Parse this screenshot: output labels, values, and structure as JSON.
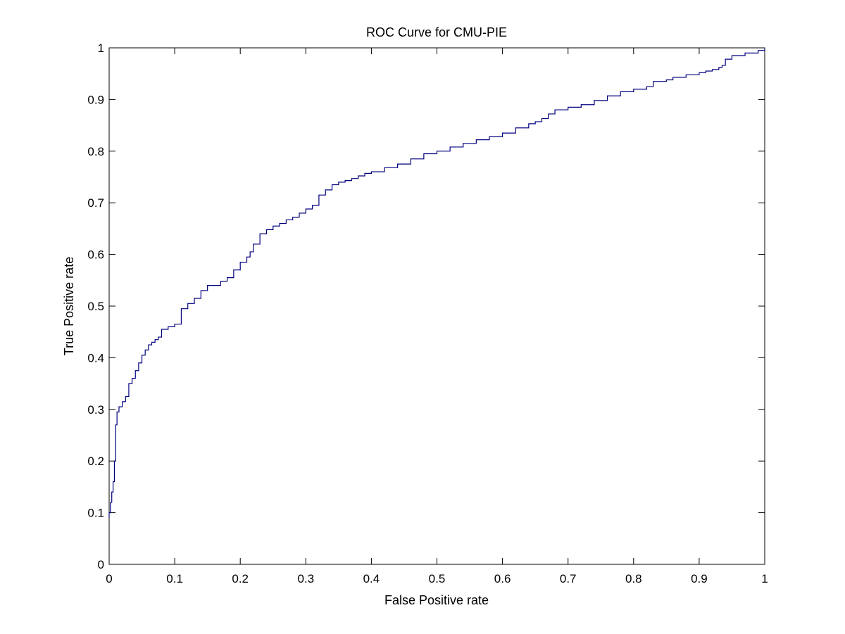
{
  "chart_data": {
    "type": "line",
    "title": "ROC Curve for CMU-PIE",
    "xlabel": "False Positive rate",
    "ylabel": "True Positive rate",
    "xlim": [
      0,
      1
    ],
    "ylim": [
      0,
      1
    ],
    "x_ticks": [
      "0",
      "0.1",
      "0.2",
      "0.3",
      "0.4",
      "0.5",
      "0.6",
      "0.7",
      "0.8",
      "0.9",
      "1"
    ],
    "y_ticks": [
      "0",
      "0.1",
      "0.2",
      "0.3",
      "0.4",
      "0.5",
      "0.6",
      "0.7",
      "0.8",
      "0.9",
      "1"
    ],
    "grid": false,
    "line_color": "#00007f",
    "series": [
      {
        "step": true,
        "x": [
          0,
          0.002,
          0.004,
          0.006,
          0.008,
          0.01,
          0.012,
          0.015,
          0.02,
          0.025,
          0.03,
          0.035,
          0.04,
          0.045,
          0.05,
          0.055,
          0.06,
          0.065,
          0.07,
          0.075,
          0.08,
          0.09,
          0.1,
          0.11,
          0.12,
          0.13,
          0.14,
          0.15,
          0.17,
          0.18,
          0.19,
          0.2,
          0.21,
          0.215,
          0.22,
          0.23,
          0.24,
          0.25,
          0.26,
          0.27,
          0.28,
          0.29,
          0.3,
          0.31,
          0.32,
          0.33,
          0.34,
          0.35,
          0.36,
          0.37,
          0.38,
          0.39,
          0.4,
          0.42,
          0.44,
          0.46,
          0.48,
          0.5,
          0.52,
          0.54,
          0.56,
          0.58,
          0.6,
          0.62,
          0.64,
          0.65,
          0.66,
          0.67,
          0.68,
          0.7,
          0.72,
          0.74,
          0.76,
          0.78,
          0.8,
          0.82,
          0.83,
          0.85,
          0.86,
          0.88,
          0.9,
          0.91,
          0.92,
          0.93,
          0.935,
          0.94,
          0.95,
          0.97,
          0.99,
          1.0
        ],
        "y": [
          0.1,
          0.12,
          0.14,
          0.16,
          0.2,
          0.27,
          0.295,
          0.305,
          0.315,
          0.325,
          0.35,
          0.36,
          0.375,
          0.39,
          0.405,
          0.415,
          0.425,
          0.43,
          0.435,
          0.44,
          0.455,
          0.46,
          0.465,
          0.495,
          0.505,
          0.515,
          0.53,
          0.54,
          0.548,
          0.555,
          0.57,
          0.585,
          0.595,
          0.605,
          0.62,
          0.64,
          0.648,
          0.655,
          0.66,
          0.667,
          0.672,
          0.68,
          0.688,
          0.695,
          0.715,
          0.725,
          0.735,
          0.74,
          0.743,
          0.747,
          0.752,
          0.757,
          0.76,
          0.768,
          0.775,
          0.785,
          0.795,
          0.8,
          0.808,
          0.815,
          0.822,
          0.828,
          0.835,
          0.845,
          0.853,
          0.857,
          0.863,
          0.872,
          0.88,
          0.885,
          0.89,
          0.898,
          0.907,
          0.915,
          0.92,
          0.925,
          0.935,
          0.938,
          0.943,
          0.948,
          0.952,
          0.955,
          0.958,
          0.962,
          0.966,
          0.978,
          0.985,
          0.99,
          0.995,
          1.0
        ]
      }
    ]
  }
}
